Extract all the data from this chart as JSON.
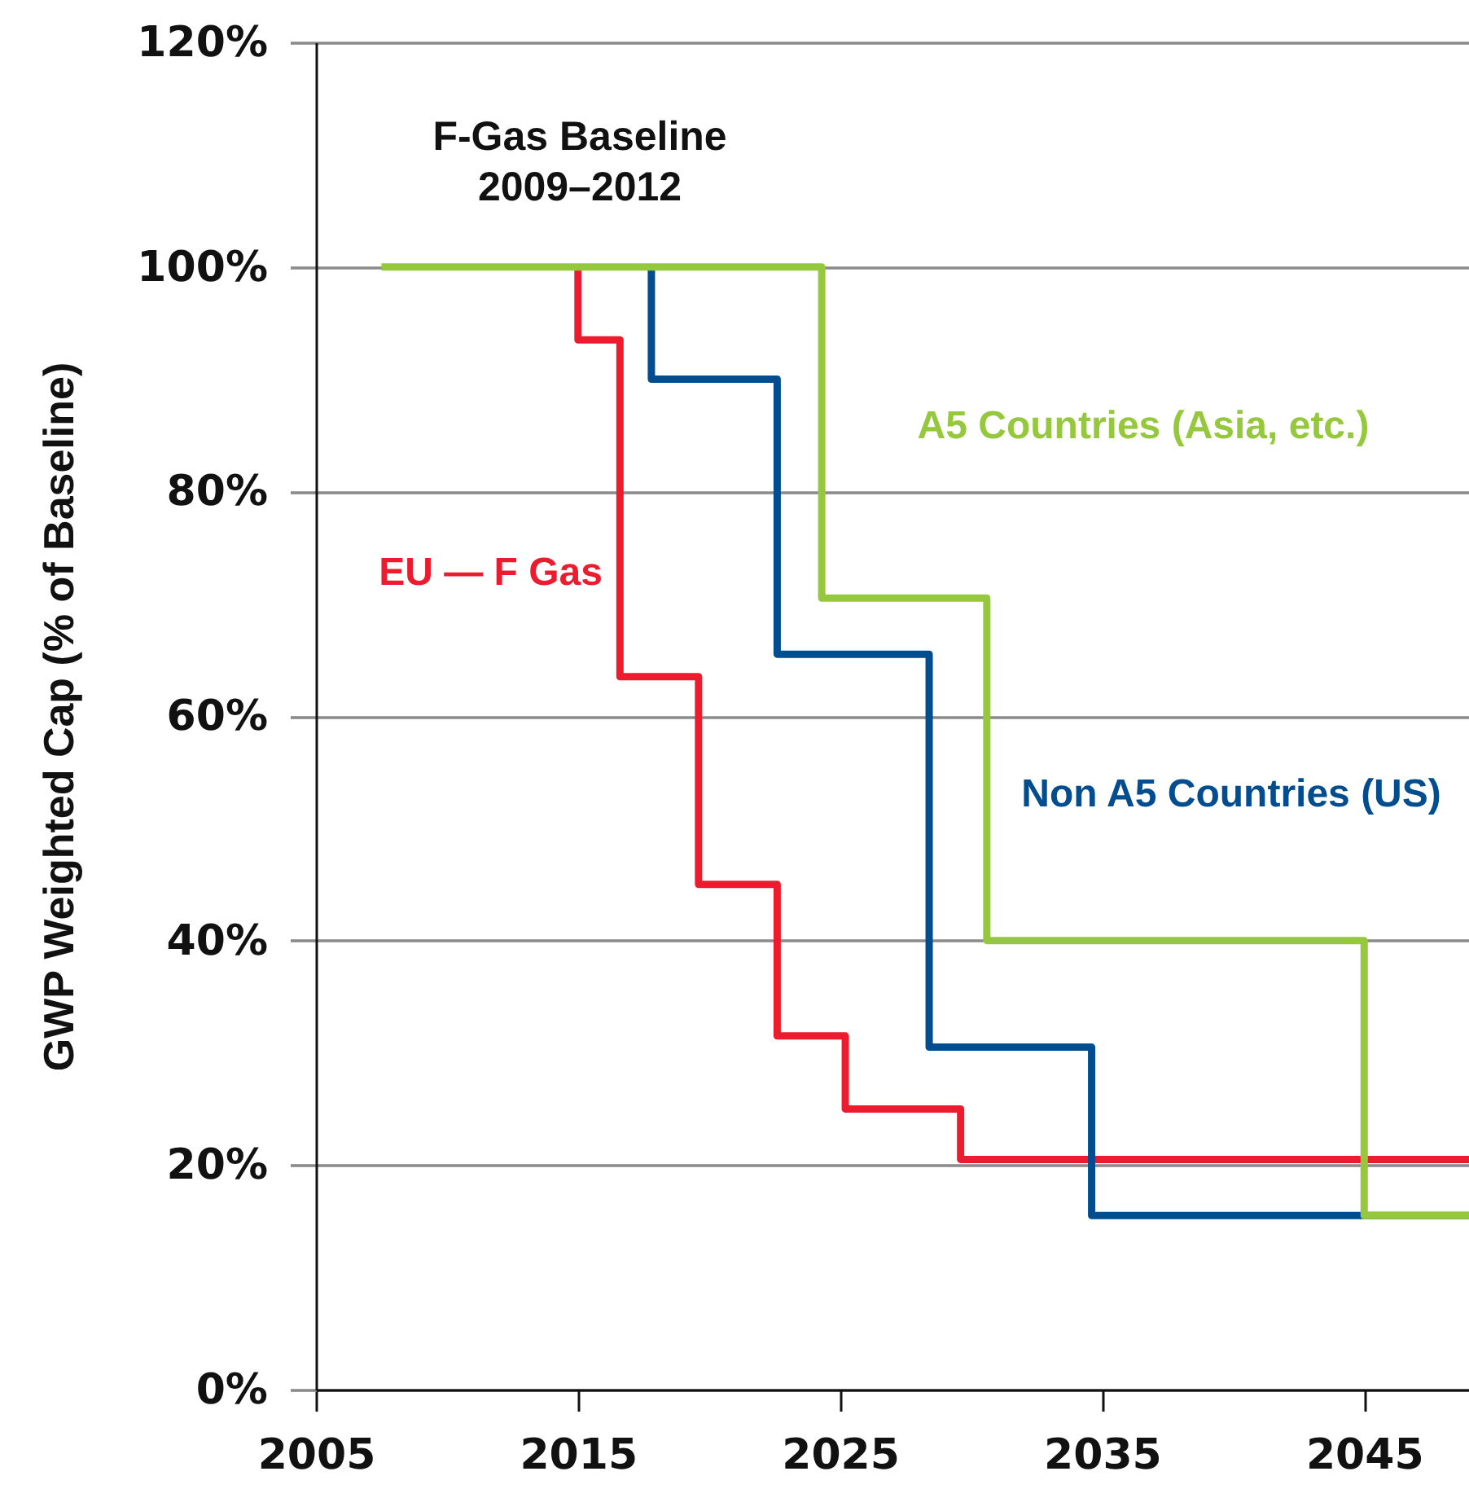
{
  "chart_data": {
    "type": "step",
    "ylabel": "GWP Weighted Cap (% of Baseline)",
    "annotations": [
      "F-Gas Baseline\n2009–2012"
    ],
    "xlim": [
      2005,
      2049
    ],
    "xticks": [
      2005,
      2015,
      2025,
      2035,
      2045
    ],
    "ylim": [
      0,
      120
    ],
    "yticks": [
      {
        "value": 0,
        "label": "0%"
      },
      {
        "value": 20,
        "label": "20%"
      },
      {
        "value": 40,
        "label": "40%"
      },
      {
        "value": 60,
        "label": "60%"
      },
      {
        "value": 80,
        "label": "80%"
      },
      {
        "value": 100,
        "label": "100%"
      },
      {
        "value": 120,
        "label": "120%"
      }
    ],
    "grid": "y",
    "series": [
      {
        "name": "EU — F Gas",
        "color": "#ec1c2e",
        "x": [
          2015,
          2015,
          2016.6,
          2019.6,
          2022.6,
          2025.2,
          2029.6,
          2049
        ],
        "values": [
          100,
          93.5,
          63.5,
          45,
          31.5,
          25,
          20.5,
          20.5
        ]
      },
      {
        "name": "Non A5 Countries (US)",
        "color": "#014d8f",
        "x": [
          2017.8,
          2017.8,
          2022.6,
          2028.4,
          2034.6,
          2049
        ],
        "values": [
          100,
          90,
          65.5,
          30.5,
          15.5,
          15.5
        ]
      },
      {
        "name": "A5 Countries (Asia, etc.)",
        "color": "#95c83d",
        "x": [
          2007.5,
          2024.3,
          2030.6,
          2045,
          2049
        ],
        "values": [
          100,
          70.5,
          40,
          15.5,
          15.5
        ]
      }
    ]
  }
}
